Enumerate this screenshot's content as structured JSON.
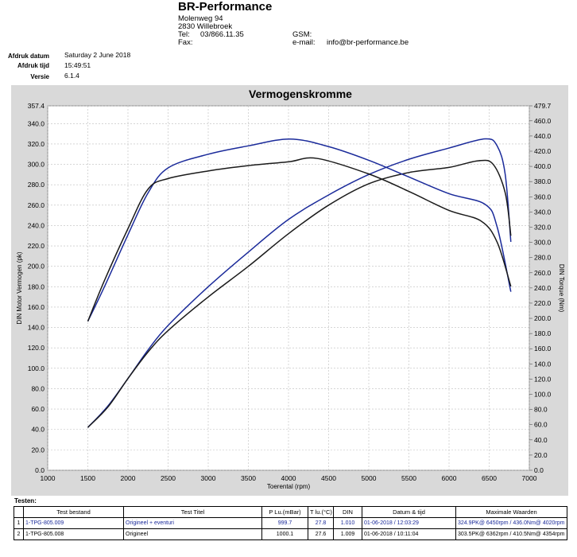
{
  "header": {
    "company": "BR-Performance",
    "street": "Molenweg 94",
    "city": "2830 Willebroek",
    "tel_label": "Tel:",
    "tel_value": "03/866.11.35",
    "fax_label": "Fax:",
    "gsm_label": "GSM:",
    "email_label": "e-mail:",
    "email_value": "info@br-performance.be"
  },
  "meta": {
    "date_label": "Afdruk datum",
    "date_value": "Saturday 2 June 2018",
    "time_label": "Afdruk tijd",
    "time_value": "15:49:51",
    "version_label": "Versie",
    "version_value": "6.1.4"
  },
  "chart_data": {
    "type": "line",
    "title": "Vermogenskromme",
    "xlabel": "Toerental (rpm)",
    "ylabel_left": "DIN Motor Vermogen (pk)",
    "ylabel_right": "DIN Torque (Nm)",
    "xlim": [
      1000,
      7000
    ],
    "ylim_left": [
      0,
      357.4
    ],
    "ylim_right": [
      0,
      479.7
    ],
    "x_ticks": [
      "1000",
      "1500",
      "2000",
      "2500",
      "3000",
      "3500",
      "4000",
      "4500",
      "5000",
      "5500",
      "6000",
      "6500",
      "7000"
    ],
    "y_left_ticks": [
      "0.0",
      "20.0",
      "40.0",
      "60.0",
      "80.0",
      "100.0",
      "120.0",
      "140.0",
      "160.0",
      "180.0",
      "200.0",
      "220.0",
      "240.0",
      "260.0",
      "280.0",
      "300.0",
      "320.0",
      "340.0",
      "357.4"
    ],
    "y_right_ticks": [
      "0.0",
      "20.0",
      "40.0",
      "60.0",
      "80.0",
      "100.0",
      "120.0",
      "140.0",
      "160.0",
      "180.0",
      "200.0",
      "220.0",
      "240.0",
      "260.0",
      "280.0",
      "300.0",
      "320.0",
      "340.0",
      "360.0",
      "380.0",
      "400.0",
      "420.0",
      "440.0",
      "460.0",
      "479.7"
    ],
    "grid": true,
    "series": [
      {
        "id": "power-tuned",
        "axis": "left",
        "color": "#1a2a9a",
        "points": [
          [
            1500,
            42
          ],
          [
            1750,
            63
          ],
          [
            2000,
            90
          ],
          [
            2250,
            118
          ],
          [
            2500,
            142
          ],
          [
            3000,
            180
          ],
          [
            3500,
            214
          ],
          [
            4000,
            246
          ],
          [
            4500,
            270
          ],
          [
            5000,
            290
          ],
          [
            5500,
            305
          ],
          [
            6000,
            316
          ],
          [
            6450,
            325
          ],
          [
            6600,
            318
          ],
          [
            6700,
            290
          ],
          [
            6770,
            224
          ]
        ]
      },
      {
        "id": "power-original",
        "axis": "left",
        "color": "#1a1a1a",
        "points": [
          [
            1500,
            42
          ],
          [
            1750,
            62
          ],
          [
            2000,
            90
          ],
          [
            2250,
            116
          ],
          [
            2500,
            137
          ],
          [
            3000,
            170
          ],
          [
            3500,
            200
          ],
          [
            4000,
            232
          ],
          [
            4500,
            260
          ],
          [
            5000,
            281
          ],
          [
            5500,
            292
          ],
          [
            6000,
            297
          ],
          [
            6362,
            303.5
          ],
          [
            6550,
            300
          ],
          [
            6700,
            272
          ],
          [
            6770,
            230
          ]
        ]
      },
      {
        "id": "torque-tuned",
        "axis": "right",
        "color": "#1a2a9a",
        "points": [
          [
            1500,
            196
          ],
          [
            1700,
            240
          ],
          [
            2000,
            310
          ],
          [
            2250,
            365
          ],
          [
            2500,
            398
          ],
          [
            3000,
            416
          ],
          [
            3500,
            427
          ],
          [
            4020,
            436
          ],
          [
            4500,
            426
          ],
          [
            5000,
            408
          ],
          [
            5500,
            386
          ],
          [
            6000,
            364
          ],
          [
            6450,
            350
          ],
          [
            6600,
            320
          ],
          [
            6770,
            235
          ]
        ]
      },
      {
        "id": "torque-original",
        "axis": "right",
        "color": "#1a1a1a",
        "points": [
          [
            1500,
            196
          ],
          [
            1700,
            248
          ],
          [
            2000,
            318
          ],
          [
            2250,
            370
          ],
          [
            2500,
            384
          ],
          [
            3000,
            394
          ],
          [
            3500,
            401
          ],
          [
            4000,
            406
          ],
          [
            4354,
            410.5
          ],
          [
            5000,
            390
          ],
          [
            5500,
            367
          ],
          [
            6000,
            342
          ],
          [
            6400,
            328
          ],
          [
            6600,
            300
          ],
          [
            6770,
            242
          ]
        ]
      }
    ]
  },
  "testen_label": "Testen:",
  "table": {
    "headers": [
      "",
      "Test bestand",
      "Test Titel",
      "P Lu.(mBar)",
      "T lu.(°C)",
      "DIN",
      "Datum & tijd",
      "Maximale Waarden"
    ],
    "rows": [
      [
        "1",
        "1-TPG-805.009",
        "Origineel + eventuri",
        "999.7",
        "27.8",
        "1.010",
        "01-06-2018 / 12:03:29",
        "324.9PK@ 6450rpm / 436.0Nm@ 4020rpm"
      ],
      [
        "2",
        "1-TPG-805.008",
        "Origineel",
        "1000.1",
        "27.6",
        "1.009",
        "01-06-2018 / 10:11:04",
        "303.5PK@ 6362rpm / 410.5Nm@ 4354rpm"
      ]
    ]
  }
}
